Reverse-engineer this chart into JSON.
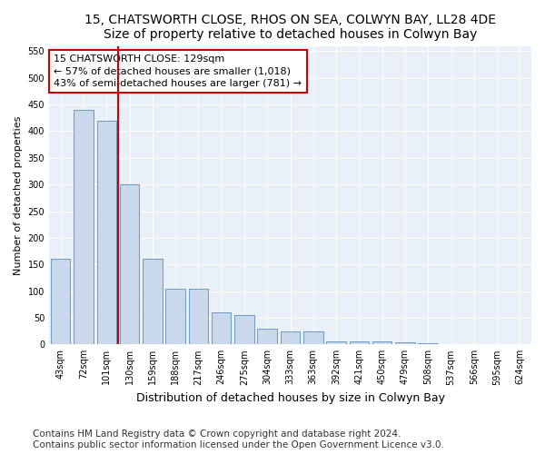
{
  "title": "15, CHATSWORTH CLOSE, RHOS ON SEA, COLWYN BAY, LL28 4DE",
  "subtitle": "Size of property relative to detached houses in Colwyn Bay",
  "xlabel": "Distribution of detached houses by size in Colwyn Bay",
  "ylabel": "Number of detached properties",
  "categories": [
    "43sqm",
    "72sqm",
    "101sqm",
    "130sqm",
    "159sqm",
    "188sqm",
    "217sqm",
    "246sqm",
    "275sqm",
    "304sqm",
    "333sqm",
    "363sqm",
    "392sqm",
    "421sqm",
    "450sqm",
    "479sqm",
    "508sqm",
    "537sqm",
    "566sqm",
    "595sqm",
    "624sqm"
  ],
  "values": [
    160,
    440,
    420,
    300,
    160,
    105,
    105,
    60,
    55,
    30,
    25,
    25,
    5,
    5,
    5,
    4,
    2,
    1,
    1,
    1,
    1
  ],
  "bar_color": "#c9d9eb",
  "bar_edge_color": "#5b8db8",
  "reference_line_color": "#cc0000",
  "reference_line_x": 2.5,
  "annotation_text": "15 CHATSWORTH CLOSE: 129sqm\n← 57% of detached houses are smaller (1,018)\n43% of semi-detached houses are larger (781) →",
  "annotation_box_color": "#cc0000",
  "ylim": [
    0,
    560
  ],
  "yticks": [
    0,
    50,
    100,
    150,
    200,
    250,
    300,
    350,
    400,
    450,
    500,
    550
  ],
  "footer_line1": "Contains HM Land Registry data © Crown copyright and database right 2024.",
  "footer_line2": "Contains public sector information licensed under the Open Government Licence v3.0.",
  "bg_color": "#eaf0f8",
  "plot_bg_color": "#eaf0f8",
  "fig_bg_color": "#ffffff",
  "title_fontsize": 10,
  "xlabel_fontsize": 9,
  "ylabel_fontsize": 8,
  "tick_fontsize": 7,
  "footer_fontsize": 7.5,
  "annotation_fontsize": 8
}
